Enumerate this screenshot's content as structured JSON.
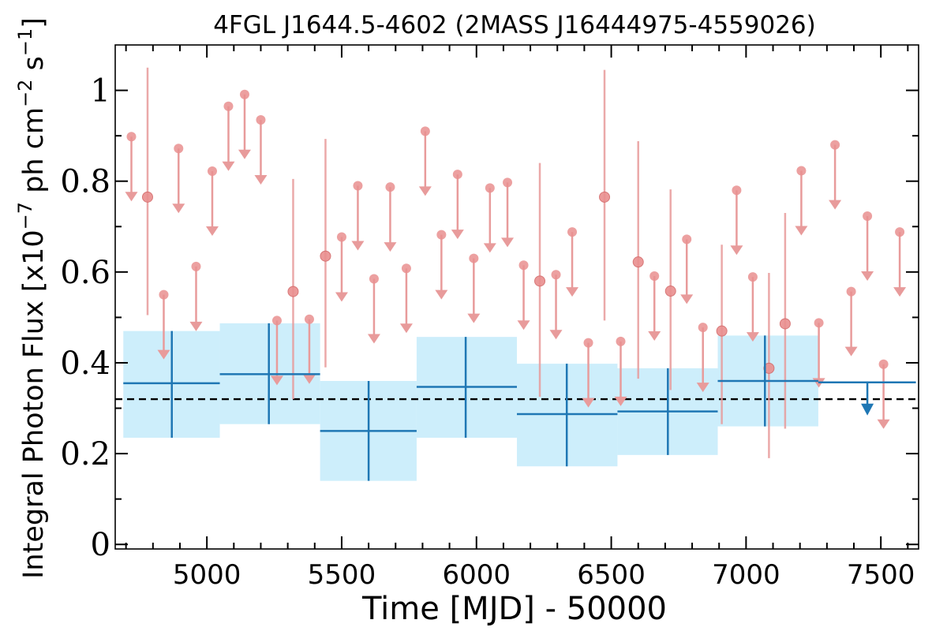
{
  "chart_data": {
    "type": "scatter",
    "title": "4FGL J1644.5-4602 (2MASS J16444975-4559026)",
    "xlabel": "Time [MJD] - 50000",
    "ylabel": "Integral Photon Flux [x10^-7 ph cm^-2 s^-1]",
    "ylabel_parts": {
      "prefix": "Integral Photon Flux [x10",
      "exp1": "−7",
      "mid": " ph cm",
      "exp2": "−2",
      "mid2": " s",
      "exp3": "−1",
      "suffix": "]"
    },
    "xlim": [
      4660,
      7640
    ],
    "ylim": [
      -0.01,
      1.1
    ],
    "xticks": [
      5000,
      5500,
      6000,
      6500,
      7000,
      7500
    ],
    "xtick_labels": [
      "5000",
      "5500",
      "6000",
      "6500",
      "7000",
      "7500"
    ],
    "yticks": [
      0,
      0.2,
      0.4,
      0.6,
      0.8,
      1.0
    ],
    "ytick_labels": [
      "0",
      "0.2",
      "0.4",
      "0.6",
      "0.8",
      "1"
    ],
    "grid": false,
    "reference_line": {
      "y": 0.32,
      "style": "dashed",
      "color": "#000000"
    },
    "colors": {
      "short_bin": "#e89b9b",
      "short_bin_marker": "#e98f8f",
      "long_bin": "#1f77b4",
      "long_bin_band": "#cdeefb",
      "reference_line": "#000000"
    },
    "series": [
      {
        "binning": "short",
        "detections": [
          {
            "x": 4780,
            "y": 0.765,
            "ylo": 0.505,
            "yhi": 1.05
          },
          {
            "x": 5320,
            "y": 0.557,
            "ylo": 0.32,
            "yhi": 0.805
          },
          {
            "x": 5440,
            "y": 0.635,
            "ylo": 0.39,
            "yhi": 0.893
          },
          {
            "x": 6235,
            "y": 0.58,
            "ylo": 0.325,
            "yhi": 0.84
          },
          {
            "x": 6475,
            "y": 0.765,
            "ylo": 0.493,
            "yhi": 1.045
          },
          {
            "x": 6600,
            "y": 0.622,
            "ylo": 0.365,
            "yhi": 0.888
          },
          {
            "x": 6720,
            "y": 0.558,
            "ylo": 0.34,
            "yhi": 0.782
          },
          {
            "x": 6910,
            "y": 0.47,
            "ylo": 0.265,
            "yhi": 0.66
          },
          {
            "x": 7085,
            "y": 0.388,
            "ylo": 0.19,
            "yhi": 0.598
          },
          {
            "x": 7145,
            "y": 0.486,
            "ylo": 0.255,
            "yhi": 0.73
          }
        ],
        "upper_limits": [
          {
            "x": 4720,
            "y": 0.898
          },
          {
            "x": 4840,
            "y": 0.55
          },
          {
            "x": 4895,
            "y": 0.872
          },
          {
            "x": 4960,
            "y": 0.612
          },
          {
            "x": 5020,
            "y": 0.822
          },
          {
            "x": 5080,
            "y": 0.965
          },
          {
            "x": 5140,
            "y": 0.991
          },
          {
            "x": 5200,
            "y": 0.935
          },
          {
            "x": 5260,
            "y": 0.493
          },
          {
            "x": 5380,
            "y": 0.496
          },
          {
            "x": 5500,
            "y": 0.677
          },
          {
            "x": 5560,
            "y": 0.79
          },
          {
            "x": 5620,
            "y": 0.585
          },
          {
            "x": 5680,
            "y": 0.787
          },
          {
            "x": 5740,
            "y": 0.608
          },
          {
            "x": 5810,
            "y": 0.91
          },
          {
            "x": 5870,
            "y": 0.682
          },
          {
            "x": 5930,
            "y": 0.815
          },
          {
            "x": 5990,
            "y": 0.63
          },
          {
            "x": 6050,
            "y": 0.785
          },
          {
            "x": 6115,
            "y": 0.797
          },
          {
            "x": 6175,
            "y": 0.615
          },
          {
            "x": 6295,
            "y": 0.594
          },
          {
            "x": 6355,
            "y": 0.688
          },
          {
            "x": 6415,
            "y": 0.444
          },
          {
            "x": 6535,
            "y": 0.447
          },
          {
            "x": 6660,
            "y": 0.591
          },
          {
            "x": 6780,
            "y": 0.672
          },
          {
            "x": 6840,
            "y": 0.478
          },
          {
            "x": 6965,
            "y": 0.78
          },
          {
            "x": 7025,
            "y": 0.589
          },
          {
            "x": 7205,
            "y": 0.823
          },
          {
            "x": 7270,
            "y": 0.488
          },
          {
            "x": 7330,
            "y": 0.88
          },
          {
            "x": 7390,
            "y": 0.557
          },
          {
            "x": 7450,
            "y": 0.723
          },
          {
            "x": 7510,
            "y": 0.397
          },
          {
            "x": 7570,
            "y": 0.688
          }
        ]
      },
      {
        "binning": "long",
        "detections": [
          {
            "x0": 4690,
            "x1": 5048,
            "xc": 4870,
            "y": 0.355,
            "ylo": 0.235,
            "yhi": 0.47
          },
          {
            "x0": 5048,
            "x1": 5420,
            "xc": 5230,
            "y": 0.375,
            "ylo": 0.265,
            "yhi": 0.487
          },
          {
            "x0": 5420,
            "x1": 5778,
            "xc": 5600,
            "y": 0.25,
            "ylo": 0.14,
            "yhi": 0.36
          },
          {
            "x0": 5778,
            "x1": 6150,
            "xc": 5960,
            "y": 0.347,
            "ylo": 0.235,
            "yhi": 0.457
          },
          {
            "x0": 6150,
            "x1": 6523,
            "xc": 6335,
            "y": 0.287,
            "ylo": 0.172,
            "yhi": 0.398
          },
          {
            "x0": 6523,
            "x1": 6895,
            "xc": 6710,
            "y": 0.293,
            "ylo": 0.197,
            "yhi": 0.388
          },
          {
            "x0": 6895,
            "x1": 7268,
            "xc": 7070,
            "y": 0.36,
            "ylo": 0.26,
            "yhi": 0.46
          }
        ],
        "upper_limits": [
          {
            "x0": 7268,
            "x1": 7630,
            "xc": 7450,
            "y": 0.357
          }
        ]
      }
    ]
  }
}
